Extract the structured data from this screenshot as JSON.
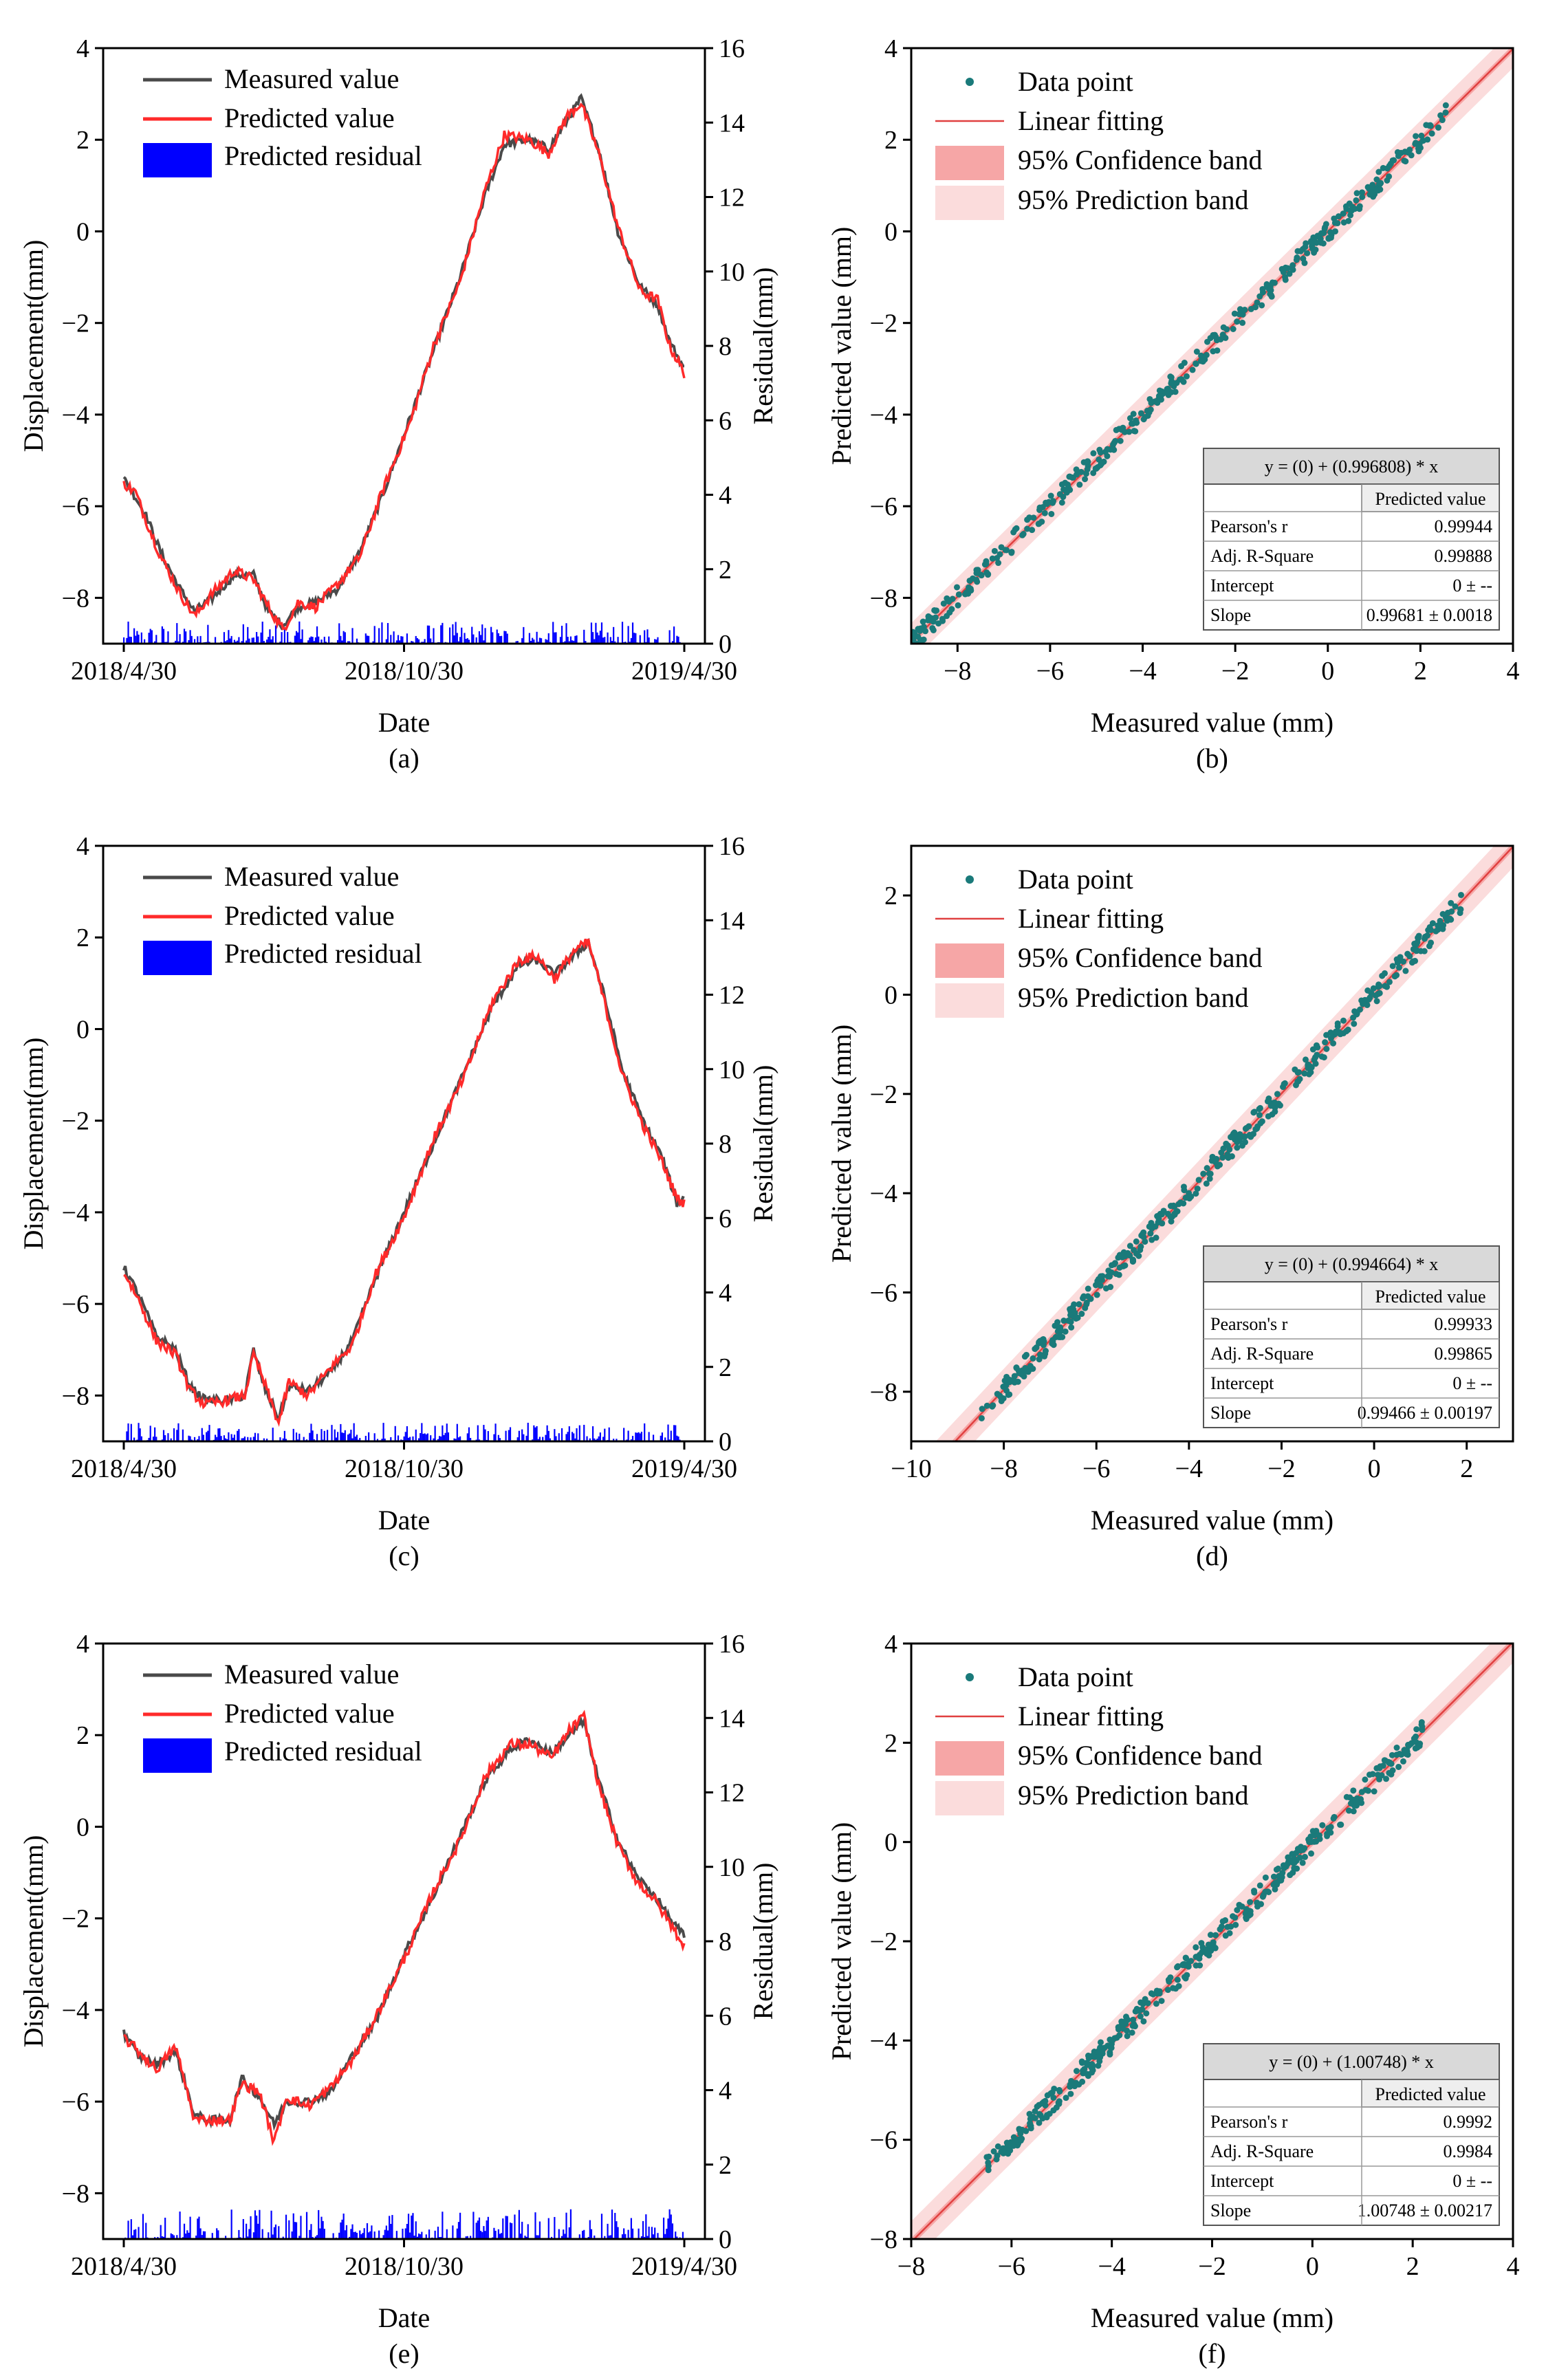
{
  "colors": {
    "measured": "#4a4a4a",
    "predicted": "#ff2a2a",
    "residual": "#0000ff",
    "points": "#1a7a7a",
    "fit": "#e04040",
    "confidence": "#f6a6a6",
    "prediction": "#fbdcdc"
  },
  "chart_data": [
    {
      "id": "a",
      "type": "line",
      "caption": "(a)",
      "xlabel": "Date",
      "ylabel": "Displacement(mm)",
      "ylabel_right": "Residual(mm)",
      "x_tick_labels": [
        "2018/4/30",
        "2018/10/30",
        "2019/4/30"
      ],
      "ylim": [
        -9,
        4
      ],
      "yticks": [
        -8,
        -6,
        -4,
        -2,
        0,
        2,
        4
      ],
      "ylim_right": [
        0,
        16
      ],
      "yticks_right": [
        0,
        2,
        4,
        6,
        8,
        10,
        12,
        14,
        16
      ],
      "legend": [
        "Measured value",
        "Predicted value",
        "Predicted residual"
      ],
      "series_measured": [
        [
          0,
          -5.4
        ],
        [
          8,
          -5.8
        ],
        [
          15,
          -6.2
        ],
        [
          25,
          -7.0
        ],
        [
          38,
          -7.8
        ],
        [
          48,
          -8.3
        ],
        [
          60,
          -8.0
        ],
        [
          75,
          -7.5
        ],
        [
          88,
          -7.5
        ],
        [
          98,
          -8.3
        ],
        [
          108,
          -8.6
        ],
        [
          118,
          -8.2
        ],
        [
          130,
          -8.1
        ],
        [
          145,
          -7.8
        ],
        [
          160,
          -7.0
        ],
        [
          175,
          -5.8
        ],
        [
          195,
          -4.0
        ],
        [
          210,
          -2.6
        ],
        [
          228,
          -1.0
        ],
        [
          245,
          0.8
        ],
        [
          258,
          1.9
        ],
        [
          275,
          2.0
        ],
        [
          288,
          1.8
        ],
        [
          300,
          2.4
        ],
        [
          310,
          2.9
        ],
        [
          322,
          1.8
        ],
        [
          335,
          0.0
        ],
        [
          350,
          -1.2
        ],
        [
          362,
          -1.6
        ],
        [
          370,
          -2.4
        ],
        [
          380,
          -3.0
        ]
      ],
      "series_predicted": [
        [
          0,
          -5.5
        ],
        [
          8,
          -5.7
        ],
        [
          15,
          -6.3
        ],
        [
          25,
          -7.1
        ],
        [
          38,
          -7.9
        ],
        [
          48,
          -8.4
        ],
        [
          60,
          -7.9
        ],
        [
          75,
          -7.4
        ],
        [
          88,
          -7.6
        ],
        [
          98,
          -8.2
        ],
        [
          108,
          -8.7
        ],
        [
          118,
          -8.1
        ],
        [
          130,
          -8.2
        ],
        [
          145,
          -7.7
        ],
        [
          160,
          -7.1
        ],
        [
          175,
          -5.7
        ],
        [
          195,
          -4.1
        ],
        [
          210,
          -2.5
        ],
        [
          228,
          -1.1
        ],
        [
          245,
          0.9
        ],
        [
          258,
          2.1
        ],
        [
          275,
          2.0
        ],
        [
          288,
          1.7
        ],
        [
          300,
          2.5
        ],
        [
          310,
          2.8
        ],
        [
          322,
          1.7
        ],
        [
          335,
          0.1
        ],
        [
          350,
          -1.3
        ],
        [
          362,
          -1.5
        ],
        [
          370,
          -2.5
        ],
        [
          380,
          -3.1
        ]
      ],
      "residual_max": 0.6
    },
    {
      "id": "b",
      "type": "scatter",
      "caption": "(b)",
      "xlabel": "Measured value (mm)",
      "ylabel": "Predicted value (mm)",
      "xlim": [
        -9,
        4
      ],
      "xticks": [
        -8,
        -6,
        -4,
        -2,
        0,
        2,
        4
      ],
      "ylim": [
        -9,
        4
      ],
      "yticks": [
        -8,
        -6,
        -4,
        -2,
        0,
        2,
        4
      ],
      "points_range": [
        -9.0,
        2.6
      ],
      "slope": 0.996808,
      "legend": [
        "Data point",
        "Linear fitting",
        "95% Confidence band",
        "95% Prediction band"
      ],
      "stats": {
        "equation": "y = (0) + (0.996808) * x",
        "header": "Predicted value",
        "rows": [
          [
            "Pearson's r",
            "0.99944"
          ],
          [
            "Adj. R-Square",
            "0.99888"
          ],
          [
            "Intercept",
            "0 ± --"
          ],
          [
            "Slope",
            "0.99681 ± 0.0018"
          ]
        ]
      }
    },
    {
      "id": "c",
      "type": "line",
      "caption": "(c)",
      "xlabel": "Date",
      "ylabel": "Displacement(mm)",
      "ylabel_right": "Residual(mm)",
      "x_tick_labels": [
        "2018/4/30",
        "2018/10/30",
        "2019/4/30"
      ],
      "ylim": [
        -9,
        4
      ],
      "yticks": [
        -8,
        -6,
        -4,
        -2,
        0,
        2,
        4
      ],
      "ylim_right": [
        0,
        16
      ],
      "yticks_right": [
        0,
        2,
        4,
        6,
        8,
        10,
        12,
        14,
        16
      ],
      "legend": [
        "Measured value",
        "Predicted value",
        "Predicted residual"
      ],
      "series_measured": [
        [
          0,
          -5.2
        ],
        [
          10,
          -5.8
        ],
        [
          22,
          -6.7
        ],
        [
          35,
          -7.0
        ],
        [
          45,
          -7.8
        ],
        [
          55,
          -8.1
        ],
        [
          70,
          -8.1
        ],
        [
          82,
          -8.0
        ],
        [
          88,
          -7.0
        ],
        [
          95,
          -7.8
        ],
        [
          105,
          -8.5
        ],
        [
          112,
          -7.8
        ],
        [
          125,
          -7.9
        ],
        [
          140,
          -7.5
        ],
        [
          155,
          -6.8
        ],
        [
          170,
          -5.5
        ],
        [
          190,
          -4.0
        ],
        [
          210,
          -2.5
        ],
        [
          230,
          -1.0
        ],
        [
          250,
          0.5
        ],
        [
          268,
          1.4
        ],
        [
          280,
          1.5
        ],
        [
          292,
          1.2
        ],
        [
          305,
          1.6
        ],
        [
          315,
          1.9
        ],
        [
          325,
          0.8
        ],
        [
          338,
          -0.9
        ],
        [
          352,
          -2.0
        ],
        [
          365,
          -2.8
        ],
        [
          375,
          -3.8
        ],
        [
          380,
          -3.7
        ]
      ],
      "series_predicted": [
        [
          0,
          -5.3
        ],
        [
          10,
          -5.9
        ],
        [
          22,
          -6.8
        ],
        [
          35,
          -7.1
        ],
        [
          45,
          -7.9
        ],
        [
          55,
          -8.2
        ],
        [
          70,
          -8.1
        ],
        [
          82,
          -8.0
        ],
        [
          88,
          -7.1
        ],
        [
          95,
          -7.7
        ],
        [
          105,
          -8.6
        ],
        [
          112,
          -7.7
        ],
        [
          125,
          -8.0
        ],
        [
          140,
          -7.4
        ],
        [
          155,
          -6.9
        ],
        [
          170,
          -5.4
        ],
        [
          190,
          -4.1
        ],
        [
          210,
          -2.4
        ],
        [
          230,
          -1.1
        ],
        [
          250,
          0.6
        ],
        [
          268,
          1.5
        ],
        [
          280,
          1.6
        ],
        [
          292,
          1.1
        ],
        [
          305,
          1.7
        ],
        [
          315,
          1.9
        ],
        [
          325,
          0.7
        ],
        [
          338,
          -1.0
        ],
        [
          352,
          -2.1
        ],
        [
          365,
          -2.9
        ],
        [
          375,
          -3.7
        ],
        [
          380,
          -3.8
        ]
      ],
      "residual_max": 0.5
    },
    {
      "id": "d",
      "type": "scatter",
      "caption": "(d)",
      "xlabel": "Measured value (mm)",
      "ylabel": "Predicted value (mm)",
      "xlim": [
        -10,
        3
      ],
      "xticks": [
        -10,
        -8,
        -6,
        -4,
        -2,
        0,
        2
      ],
      "ylim": [
        -9,
        3
      ],
      "yticks": [
        -8,
        -6,
        -4,
        -2,
        0,
        2
      ],
      "points_range": [
        -8.5,
        1.9
      ],
      "slope": 0.994664,
      "legend": [
        "Data point",
        "Linear fitting",
        "95% Confidence band",
        "95% Prediction band"
      ],
      "stats": {
        "equation": "y = (0) + (0.994664) * x",
        "header": "Predicted value",
        "rows": [
          [
            "Pearson's r",
            "0.99933"
          ],
          [
            "Adj. R-Square",
            "0.99865"
          ],
          [
            "Intercept",
            "0 ± --"
          ],
          [
            "Slope",
            "0.99466 ± 0.00197"
          ]
        ]
      }
    },
    {
      "id": "e",
      "type": "line",
      "caption": "(e)",
      "xlabel": "Date",
      "ylabel": "Displacement(mm)",
      "ylabel_right": "Residual(mm)",
      "x_tick_labels": [
        "2018/4/30",
        "2018/10/30",
        "2019/4/30"
      ],
      "ylim": [
        -9,
        4
      ],
      "yticks": [
        -8,
        -6,
        -4,
        -2,
        0,
        2,
        4
      ],
      "ylim_right": [
        0,
        16
      ],
      "yticks_right": [
        0,
        2,
        4,
        6,
        8,
        10,
        12,
        14,
        16
      ],
      "legend": [
        "Measured value",
        "Predicted value",
        "Predicted residual"
      ],
      "series_measured": [
        [
          0,
          -4.5
        ],
        [
          10,
          -5.0
        ],
        [
          22,
          -5.2
        ],
        [
          35,
          -4.9
        ],
        [
          48,
          -6.3
        ],
        [
          58,
          -6.4
        ],
        [
          72,
          -6.4
        ],
        [
          80,
          -5.5
        ],
        [
          92,
          -5.9
        ],
        [
          102,
          -6.5
        ],
        [
          110,
          -6.0
        ],
        [
          125,
          -6.0
        ],
        [
          140,
          -5.8
        ],
        [
          155,
          -5.0
        ],
        [
          170,
          -4.3
        ],
        [
          190,
          -2.8
        ],
        [
          210,
          -1.5
        ],
        [
          228,
          -0.2
        ],
        [
          245,
          1.0
        ],
        [
          262,
          1.7
        ],
        [
          275,
          1.9
        ],
        [
          290,
          1.6
        ],
        [
          302,
          2.0
        ],
        [
          312,
          2.3
        ],
        [
          322,
          1.0
        ],
        [
          335,
          -0.3
        ],
        [
          348,
          -1.1
        ],
        [
          360,
          -1.5
        ],
        [
          370,
          -2.0
        ],
        [
          380,
          -2.4
        ]
      ],
      "series_predicted": [
        [
          0,
          -4.6
        ],
        [
          10,
          -4.9
        ],
        [
          22,
          -5.3
        ],
        [
          35,
          -4.8
        ],
        [
          48,
          -6.4
        ],
        [
          58,
          -6.4
        ],
        [
          72,
          -6.4
        ],
        [
          80,
          -5.6
        ],
        [
          92,
          -5.8
        ],
        [
          102,
          -6.9
        ],
        [
          110,
          -5.9
        ],
        [
          125,
          -6.1
        ],
        [
          140,
          -5.7
        ],
        [
          155,
          -5.1
        ],
        [
          170,
          -4.2
        ],
        [
          190,
          -2.9
        ],
        [
          210,
          -1.4
        ],
        [
          228,
          -0.3
        ],
        [
          245,
          1.1
        ],
        [
          262,
          1.8
        ],
        [
          275,
          1.8
        ],
        [
          290,
          1.5
        ],
        [
          302,
          2.1
        ],
        [
          312,
          2.4
        ],
        [
          322,
          0.9
        ],
        [
          335,
          -0.4
        ],
        [
          348,
          -1.2
        ],
        [
          360,
          -1.6
        ],
        [
          370,
          -2.1
        ],
        [
          380,
          -2.6
        ]
      ],
      "residual_max": 0.8
    },
    {
      "id": "f",
      "type": "scatter",
      "caption": "(f)",
      "xlabel": "Measured value (mm)",
      "ylabel": "Predicted value (mm)",
      "xlim": [
        -8,
        4
      ],
      "xticks": [
        -8,
        -6,
        -4,
        -2,
        0,
        2,
        4
      ],
      "ylim": [
        -8,
        4
      ],
      "yticks": [
        -8,
        -6,
        -4,
        -2,
        0,
        2,
        4
      ],
      "points_range": [
        -6.5,
        2.2
      ],
      "slope": 1.00748,
      "legend": [
        "Data point",
        "Linear fitting",
        "95% Confidence band",
        "95% Prediction band"
      ],
      "stats": {
        "equation": "y = (0) + (1.00748) * x",
        "header": "Predicted value",
        "rows": [
          [
            "Pearson's r",
            "0.9992"
          ],
          [
            "Adj. R-Square",
            "0.9984"
          ],
          [
            "Intercept",
            "0 ± --"
          ],
          [
            "Slope",
            "1.00748 ± 0.00217"
          ]
        ]
      }
    }
  ]
}
